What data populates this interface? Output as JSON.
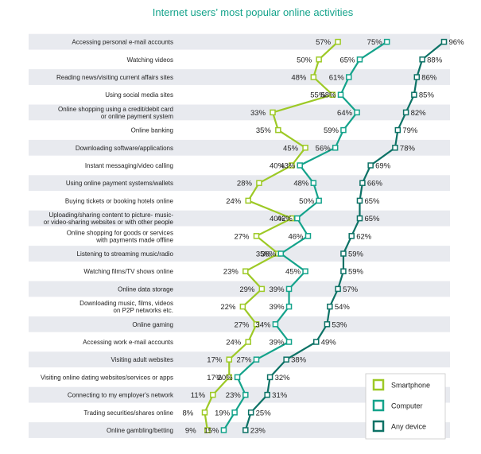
{
  "chart_data": {
    "type": "line",
    "title": "Internet users’ most popular online activities",
    "categories": [
      "Accessing personal e-mail accounts",
      "Watching videos",
      "Reading news/visiting current affairs sites",
      "Using social media sites",
      "Online shopping using a credit/debit card\nor online payment system",
      "Online banking",
      "Downloading software/applications",
      "Instant messaging/video calling",
      "Using online payment systems/wallets",
      "Buying tickets or booking hotels online",
      "Uploading/sharing content to picture-  music-\nor video-sharing websites or with other people",
      "Online shopping for goods or services\nwith payments made offline",
      "Listening to streaming music/radio",
      "Watching films/TV shows online",
      "Online data storage",
      "Downloading music, films, videos\non P2P networks etc.",
      "Online gaming",
      "Accessing work e-mail accounts",
      "Visiting adult websites",
      "Visiting online dating websites/services or apps",
      "Connecting to my employer's network",
      "Trading securities/shares online",
      "Online gambling/betting"
    ],
    "series": [
      {
        "name": "Smartphone",
        "color": "#9dc926",
        "values": [
          57,
          50,
          48,
          55,
          33,
          35,
          45,
          40,
          28,
          24,
          40,
          27,
          35,
          23,
          29,
          22,
          27,
          24,
          17,
          17,
          11,
          8,
          9
        ]
      },
      {
        "name": "Computer",
        "color": "#14a38b",
        "values": [
          75,
          65,
          61,
          58,
          64,
          59,
          56,
          43,
          48,
          50,
          42,
          46,
          36,
          45,
          39,
          39,
          34,
          39,
          27,
          20,
          23,
          19,
          15
        ]
      },
      {
        "name": "Any device",
        "color": "#0d7266",
        "values": [
          96,
          88,
          86,
          85,
          82,
          79,
          78,
          69,
          66,
          65,
          65,
          62,
          59,
          59,
          57,
          54,
          53,
          49,
          38,
          32,
          31,
          25,
          23
        ]
      }
    ],
    "value_suffix": "%",
    "legend_position": "bottom-right",
    "row_stripe_color": "#e8eaef"
  }
}
